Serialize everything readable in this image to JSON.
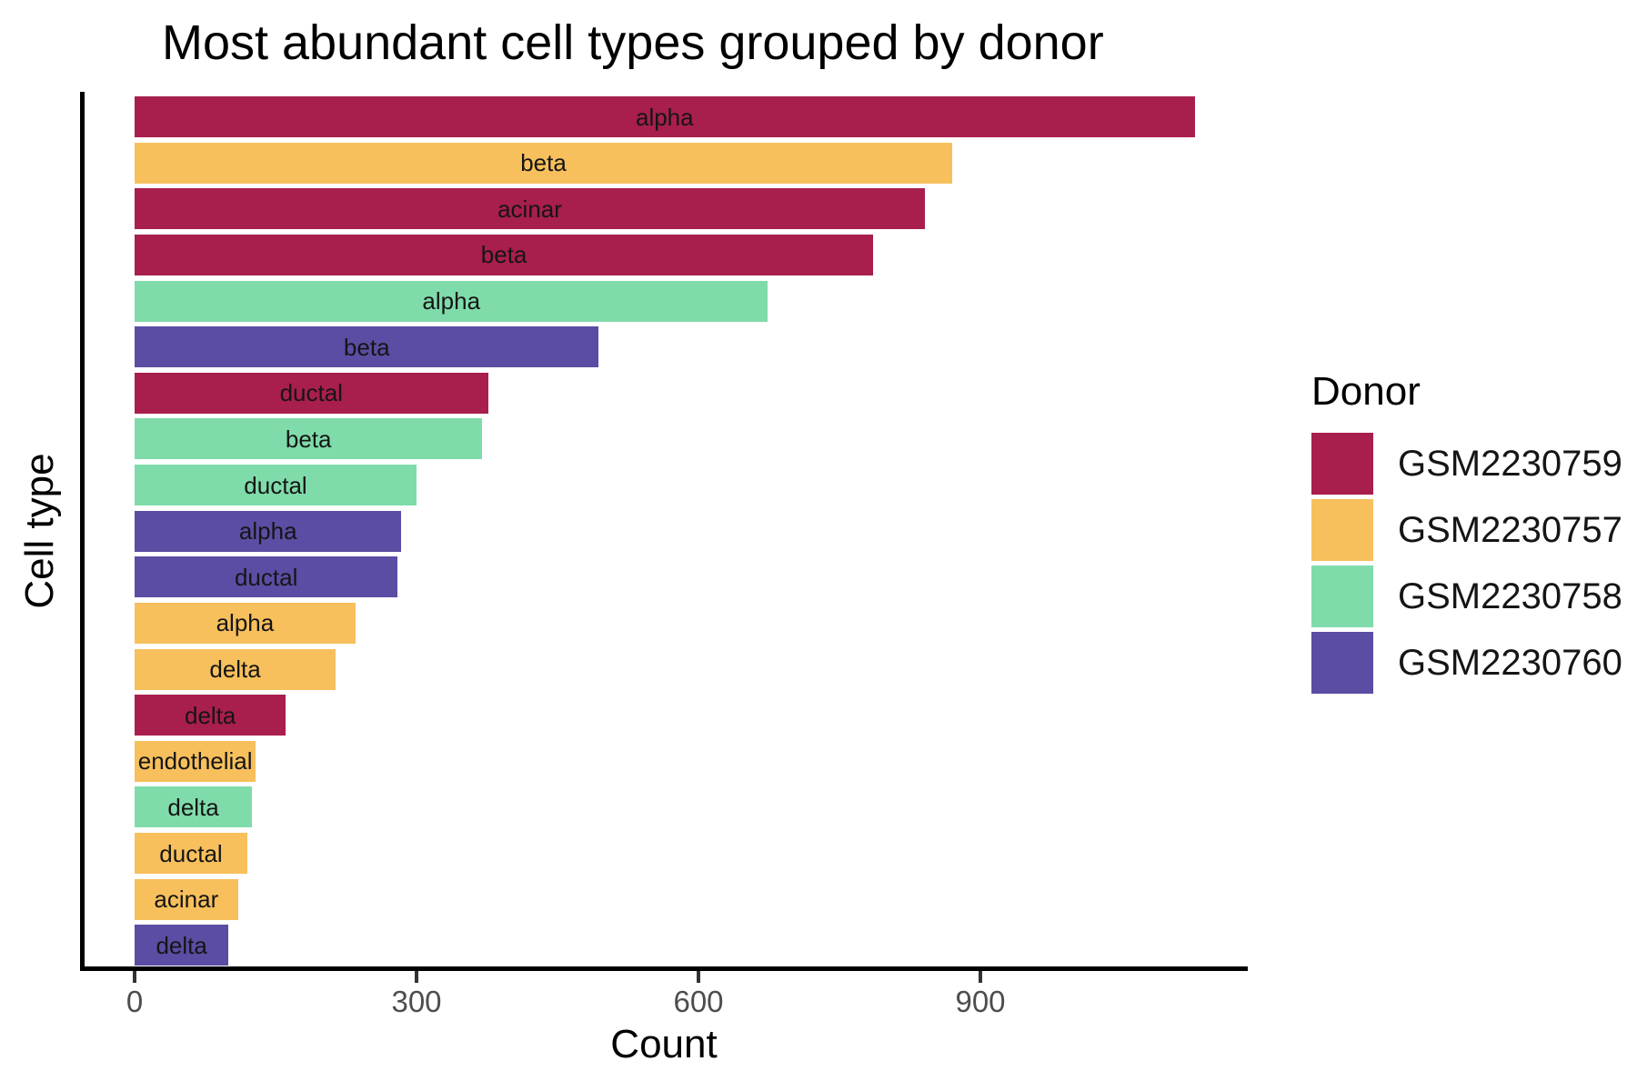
{
  "title": "Most abundant cell types grouped by donor",
  "chart_data": {
    "type": "bar",
    "orientation": "horizontal",
    "title": "Most abundant cell types grouped by donor",
    "xlabel": "Count",
    "ylabel": "Cell type",
    "xlim": [
      0,
      1185
    ],
    "xticks": [
      "0",
      "300",
      "600",
      "900"
    ],
    "xtick_values": [
      0,
      300,
      600,
      900
    ],
    "grid": false,
    "legend_position": "right",
    "legend": {
      "title": "Donor",
      "entries": [
        {
          "label": "GSM2230759",
          "color": "#A81E4D"
        },
        {
          "label": "GSM2230757",
          "color": "#F7C05C"
        },
        {
          "label": "GSM2230758",
          "color": "#7FDCAA"
        },
        {
          "label": "GSM2230760",
          "color": "#5A4DA3"
        }
      ]
    },
    "bars": [
      {
        "cell_type": "alpha",
        "donor": "GSM2230759",
        "count": 1128
      },
      {
        "cell_type": "beta",
        "donor": "GSM2230757",
        "count": 870
      },
      {
        "cell_type": "acinar",
        "donor": "GSM2230759",
        "count": 841
      },
      {
        "cell_type": "beta",
        "donor": "GSM2230759",
        "count": 786
      },
      {
        "cell_type": "alpha",
        "donor": "GSM2230758",
        "count": 674
      },
      {
        "cell_type": "beta",
        "donor": "GSM2230760",
        "count": 494
      },
      {
        "cell_type": "ductal",
        "donor": "GSM2230759",
        "count": 376
      },
      {
        "cell_type": "beta",
        "donor": "GSM2230758",
        "count": 370
      },
      {
        "cell_type": "ductal",
        "donor": "GSM2230758",
        "count": 300
      },
      {
        "cell_type": "alpha",
        "donor": "GSM2230760",
        "count": 284
      },
      {
        "cell_type": "ductal",
        "donor": "GSM2230760",
        "count": 280
      },
      {
        "cell_type": "alpha",
        "donor": "GSM2230757",
        "count": 235
      },
      {
        "cell_type": "delta",
        "donor": "GSM2230757",
        "count": 214
      },
      {
        "cell_type": "delta",
        "donor": "GSM2230759",
        "count": 161
      },
      {
        "cell_type": "endothelial",
        "donor": "GSM2230757",
        "count": 129
      },
      {
        "cell_type": "delta",
        "donor": "GSM2230758",
        "count": 125
      },
      {
        "cell_type": "ductal",
        "donor": "GSM2230757",
        "count": 120
      },
      {
        "cell_type": "acinar",
        "donor": "GSM2230757",
        "count": 110
      },
      {
        "cell_type": "delta",
        "donor": "GSM2230760",
        "count": 100
      }
    ]
  }
}
